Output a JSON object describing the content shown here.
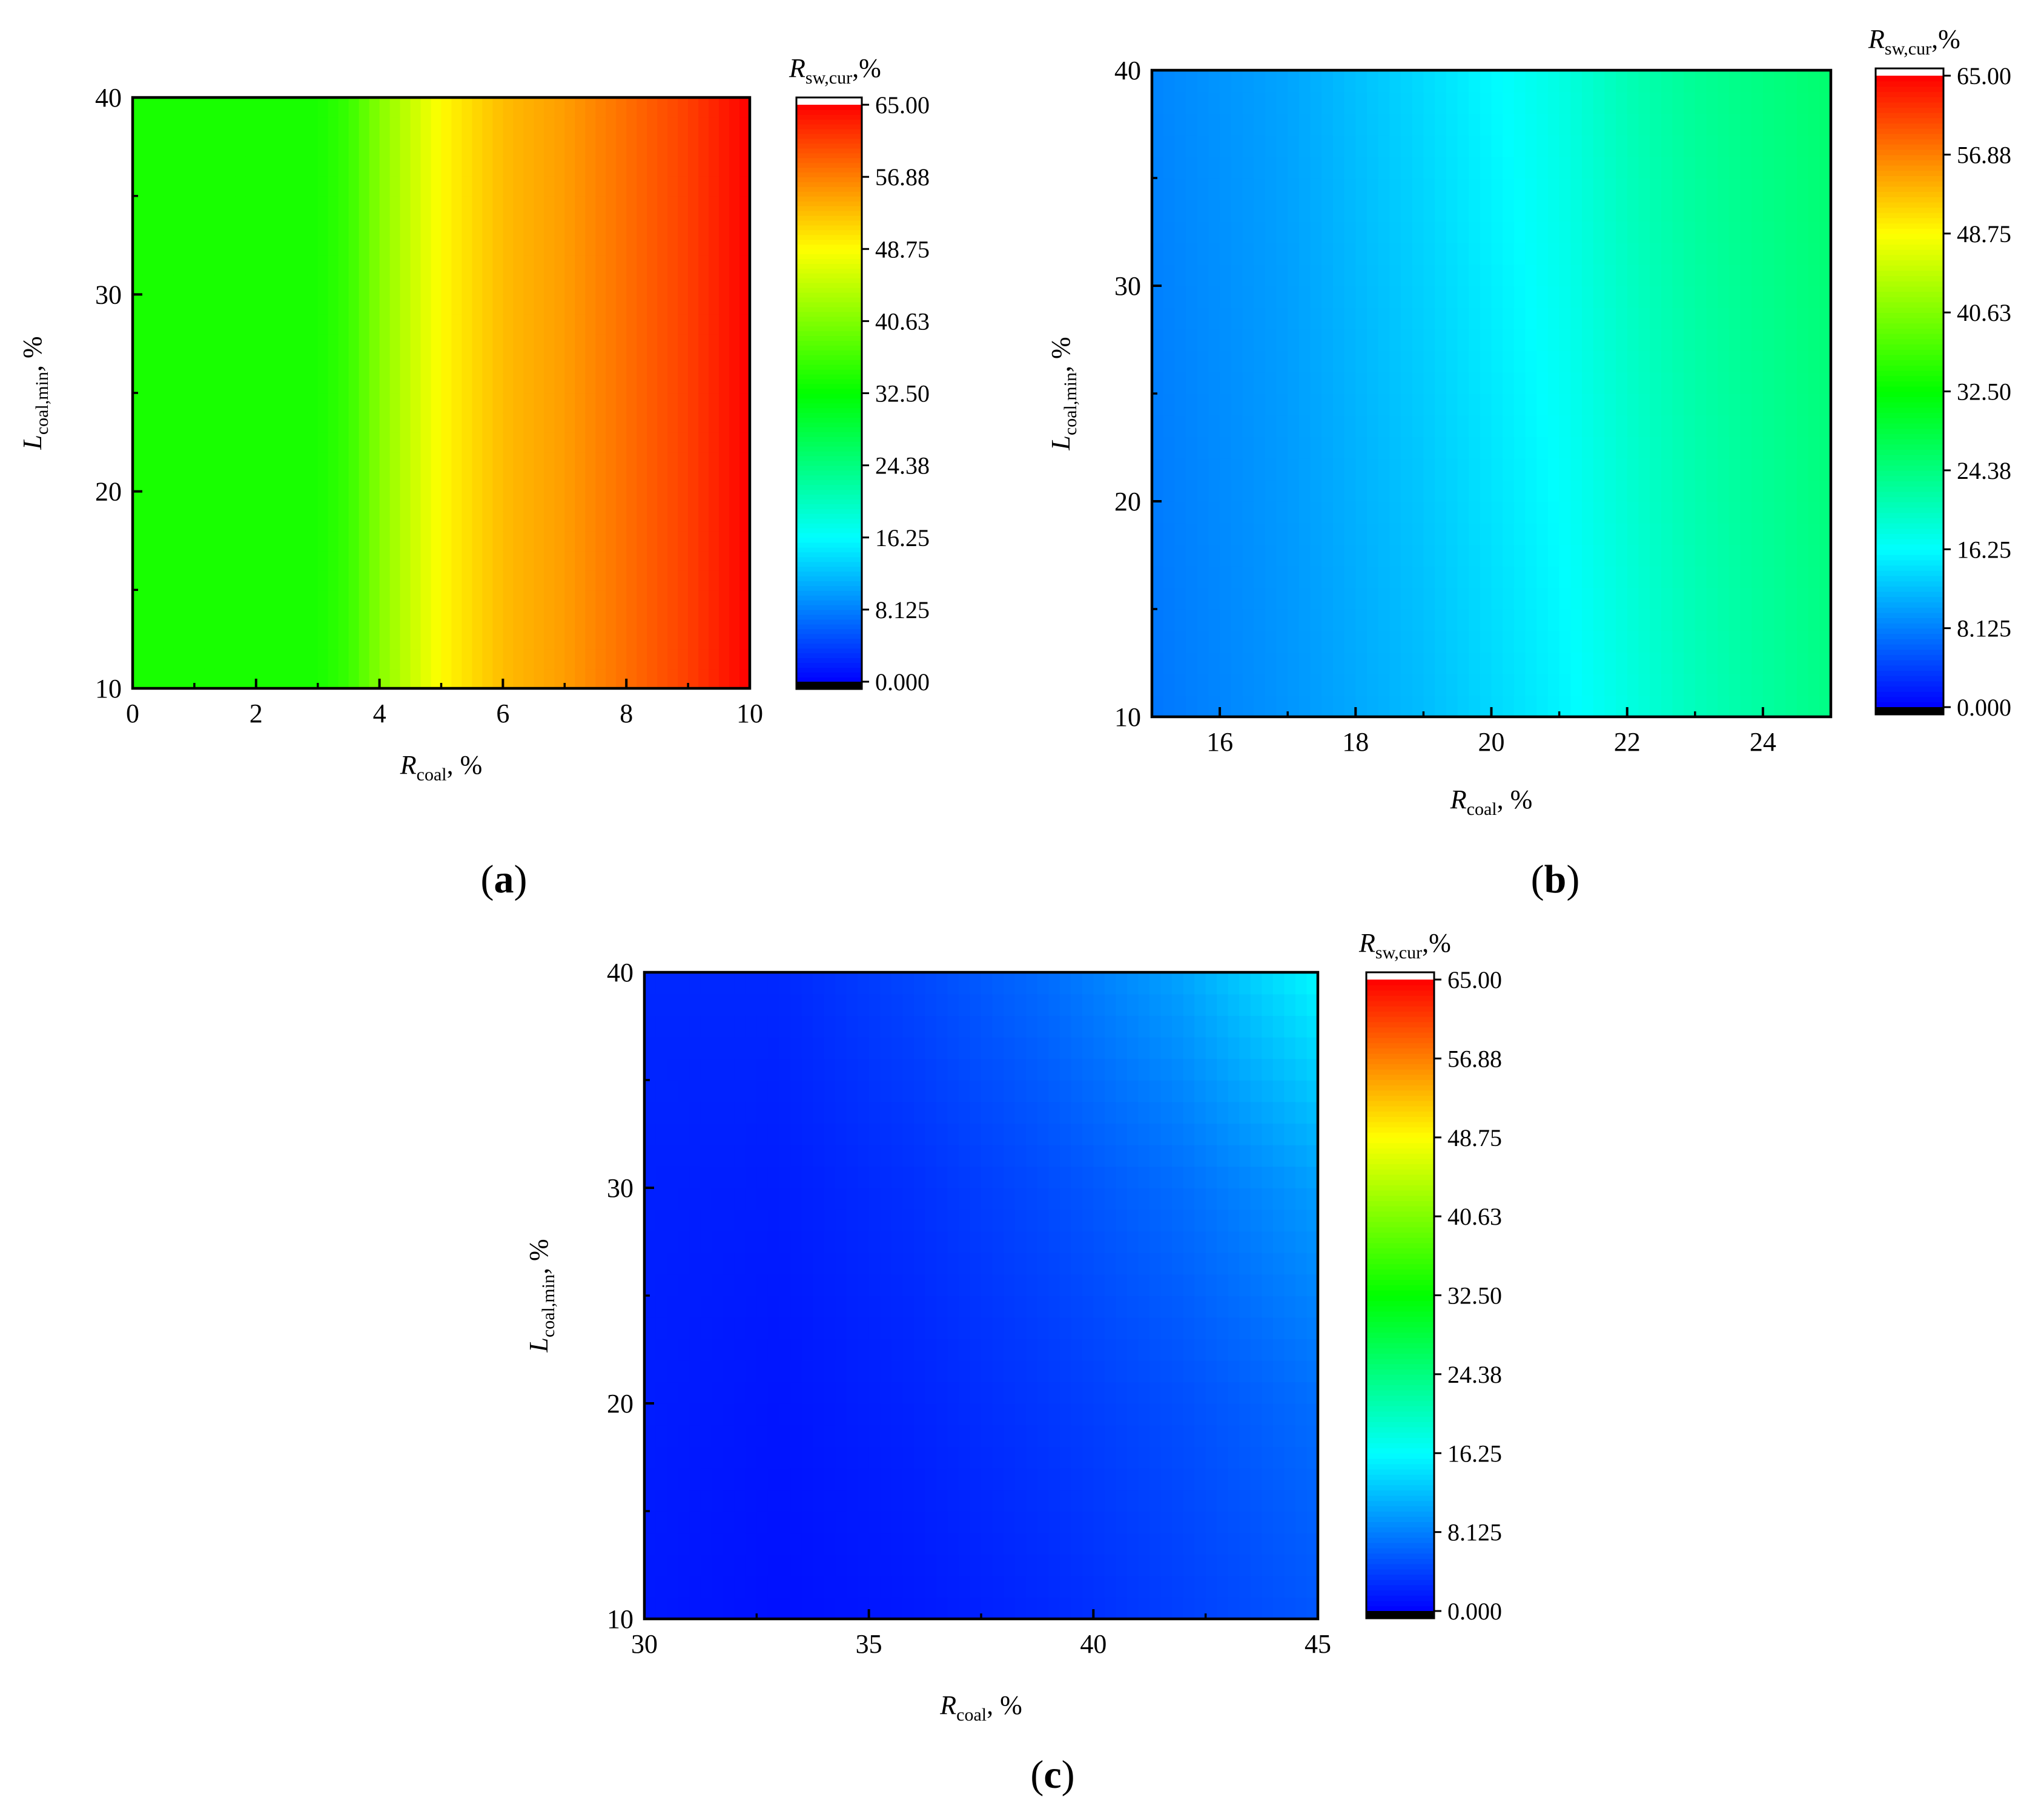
{
  "colorbar": {
    "title_symbol": "R",
    "title_subscript": "sw,cur",
    "title_suffix": ",%",
    "ticks": [
      "65.00",
      "56.88",
      "48.75",
      "40.63",
      "32.50",
      "24.38",
      "16.25",
      "8.125",
      "0.000"
    ],
    "range": [
      0,
      65
    ],
    "over_color": "#ffffff",
    "under_color": "#000000",
    "colormap": [
      "#0000ff",
      "#00ffff",
      "#00ff00",
      "#ffff00",
      "#ff0000"
    ]
  },
  "chart_data": [
    {
      "type": "heatmap",
      "panel": "(a)",
      "xlabel": {
        "symbol": "R",
        "subscript": "coal",
        "suffix": ", %"
      },
      "ylabel": {
        "symbol": "L",
        "subscript": "coal,min",
        "suffix": ", %"
      },
      "xlim": [
        0,
        10
      ],
      "ylim": [
        10,
        40
      ],
      "xticks": [
        "0",
        "2",
        "4",
        "6",
        "8",
        "10"
      ],
      "yticks": [
        "10",
        "20",
        "30",
        "40"
      ],
      "x": [
        0,
        1,
        2,
        3,
        3.5,
        4,
        4.5,
        5,
        5.5,
        6,
        7,
        8,
        9,
        10
      ],
      "y": [
        10,
        40
      ],
      "z": [
        [
          34,
          34,
          34,
          34,
          36,
          41,
          45,
          49,
          51,
          53,
          55,
          58,
          61,
          65
        ],
        [
          34,
          34,
          34,
          34,
          36,
          41,
          45,
          49,
          51,
          53,
          55,
          58,
          61,
          65
        ]
      ]
    },
    {
      "type": "heatmap",
      "panel": "(b)",
      "xlabel": {
        "symbol": "R",
        "subscript": "coal",
        "suffix": ", %"
      },
      "ylabel": {
        "symbol": "L",
        "subscript": "coal,min",
        "suffix": ", %"
      },
      "xlim": [
        15,
        25
      ],
      "ylim": [
        10,
        40
      ],
      "xticks": [
        "16",
        "18",
        "20",
        "22",
        "24"
      ],
      "yticks": [
        "10",
        "20",
        "30",
        "40"
      ],
      "x": [
        15,
        17,
        19,
        21,
        22,
        23,
        25
      ],
      "y": [
        10,
        40
      ],
      "z": [
        [
          7.5,
          9.5,
          12,
          15.5,
          18,
          20.5,
          24
        ],
        [
          8.5,
          10.5,
          14,
          18,
          21,
          23,
          25.5
        ]
      ]
    },
    {
      "type": "heatmap",
      "panel": "(c)",
      "xlabel": {
        "symbol": "R",
        "subscript": "coal",
        "suffix": ", %"
      },
      "ylabel": {
        "symbol": "L",
        "subscript": "coal,min",
        "suffix": ", %"
      },
      "xlim": [
        30,
        45
      ],
      "ylim": [
        10,
        40
      ],
      "xticks": [
        "30",
        "35",
        "40",
        "45"
      ],
      "yticks": [
        "10",
        "20",
        "30",
        "40"
      ],
      "x": [
        30,
        33,
        36,
        39,
        42,
        45
      ],
      "y": [
        10,
        20,
        30,
        40
      ],
      "z": [
        [
          1.5,
          1.0,
          1.5,
          2.5,
          4.0,
          5.5
        ],
        [
          1.8,
          1.3,
          2.2,
          3.5,
          5.0,
          7.0
        ],
        [
          2.0,
          1.8,
          3.0,
          4.8,
          7.0,
          10.0
        ],
        [
          2.5,
          2.5,
          4.5,
          7.0,
          10.5,
          16.0
        ]
      ]
    }
  ]
}
